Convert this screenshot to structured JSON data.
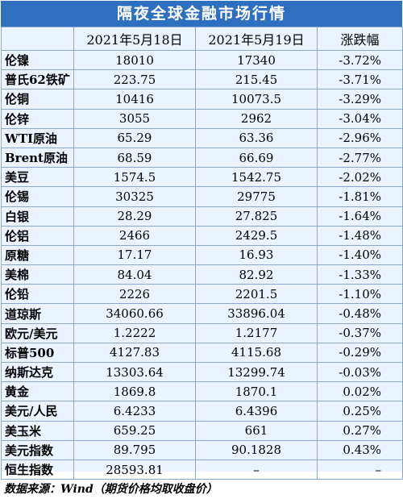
{
  "title": "隔夜全球金融市场行情",
  "columns": [
    "",
    "2021年5月18日",
    "2021年5月19日",
    "涨跌幅"
  ],
  "rows": [
    {
      "name": "伦镍",
      "d1": "18010",
      "d2": "17340",
      "chg": "-3.72%"
    },
    {
      "name": "普氏62铁矿",
      "d1": "223.75",
      "d2": "215.45",
      "chg": "-3.71%"
    },
    {
      "name": "伦铜",
      "d1": "10416",
      "d2": "10073.5",
      "chg": "-3.29%"
    },
    {
      "name": "伦锌",
      "d1": "3055",
      "d2": "2962",
      "chg": "-3.04%"
    },
    {
      "name": "WTI原油",
      "d1": "65.29",
      "d2": "63.36",
      "chg": "-2.96%"
    },
    {
      "name": "Brent原油",
      "d1": "68.59",
      "d2": "66.69",
      "chg": "-2.77%"
    },
    {
      "name": "美豆",
      "d1": "1574.5",
      "d2": "1542.75",
      "chg": "-2.02%"
    },
    {
      "name": "伦锡",
      "d1": "30325",
      "d2": "29775",
      "chg": "-1.81%"
    },
    {
      "name": "白银",
      "d1": "28.29",
      "d2": "27.825",
      "chg": "-1.64%"
    },
    {
      "name": "伦铝",
      "d1": "2466",
      "d2": "2429.5",
      "chg": "-1.48%"
    },
    {
      "name": "原糖",
      "d1": "17.17",
      "d2": "16.93",
      "chg": "-1.40%"
    },
    {
      "name": "美棉",
      "d1": "84.04",
      "d2": "82.92",
      "chg": "-1.33%"
    },
    {
      "name": "伦铅",
      "d1": "2226",
      "d2": "2201.5",
      "chg": "-1.10%"
    },
    {
      "name": "道琼斯",
      "d1": "34060.66",
      "d2": "33896.04",
      "chg": "-0.48%"
    },
    {
      "name": "欧元/美元",
      "d1": "1.2222",
      "d2": "1.2177",
      "chg": "-0.37%"
    },
    {
      "name": "标普500",
      "d1": "4127.83",
      "d2": "4115.68",
      "chg": "-0.29%"
    },
    {
      "name": "纳斯达克",
      "d1": "13303.64",
      "d2": "13299.74",
      "chg": "-0.03%"
    },
    {
      "name": "黄金",
      "d1": "1869.8",
      "d2": "1870.1",
      "chg": "0.02%"
    },
    {
      "name": "美元/人民",
      "d1": "6.4233",
      "d2": "6.4396",
      "chg": "0.25%"
    },
    {
      "name": "美玉米",
      "d1": "659.25",
      "d2": "661",
      "chg": "0.27%"
    },
    {
      "name": "美元指数",
      "d1": "89.795",
      "d2": "90.1828",
      "chg": "0.43%"
    },
    {
      "name": "恒生指数",
      "d1": "28593.81",
      "d2": "–",
      "chg": "–"
    }
  ],
  "footer": "数据来源：Wind（期货价格均取收盘价）"
}
